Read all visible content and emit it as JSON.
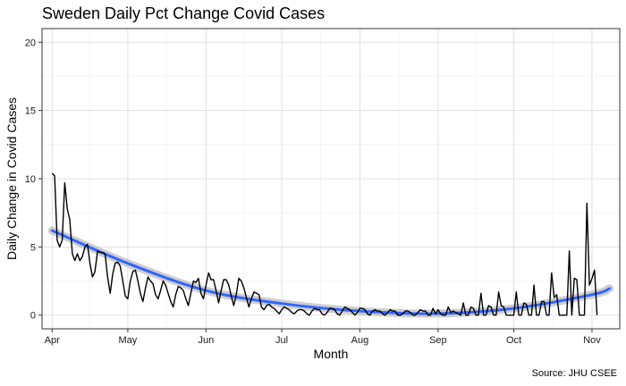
{
  "chart_data": {
    "type": "line",
    "title": "Sweden Daily Pct Change Covid Cases",
    "xlabel": "Month",
    "ylabel": "Daily Change in Covid Cases",
    "caption": "Source: JHU CSEE",
    "grid": true,
    "x_ticks": [
      "Apr",
      "May",
      "Jun",
      "Jul",
      "Aug",
      "Sep",
      "Oct",
      "Nov"
    ],
    "xlim": [
      "2020-03-28",
      "2020-11-12"
    ],
    "ylim": [
      -1,
      21
    ],
    "y_ticks": [
      0,
      5,
      10,
      15,
      20
    ],
    "series": [
      {
        "type": "line",
        "start_date": "2020-04-01",
        "values": [
          10.4,
          10.2,
          5.5,
          5.0,
          5.5,
          9.7,
          7.8,
          7.0,
          4.5,
          4.0,
          4.5,
          4.0,
          4.3,
          5.0,
          5.2,
          3.8,
          2.8,
          3.2,
          4.7,
          4.6,
          4.6,
          4.5,
          2.8,
          1.6,
          3.0,
          3.8,
          3.9,
          3.6,
          2.5,
          1.4,
          1.2,
          2.5,
          3.2,
          3.3,
          2.5,
          1.6,
          1.0,
          2.0,
          2.8,
          2.5,
          2.3,
          1.5,
          1.2,
          1.8,
          2.5,
          2.2,
          1.6,
          1.0,
          0.6,
          1.5,
          2.1,
          2.0,
          1.8,
          1.2,
          0.7,
          1.6,
          2.5,
          2.4,
          2.7,
          1.6,
          1.2,
          2.2,
          3.1,
          2.6,
          2.6,
          1.8,
          0.9,
          1.8,
          2.6,
          2.6,
          2.2,
          1.4,
          0.7,
          1.5,
          2.7,
          2.5,
          2.0,
          1.3,
          0.6,
          1.2,
          1.7,
          1.6,
          1.5,
          0.6,
          0.4,
          0.7,
          0.8,
          0.6,
          0.5,
          0.3,
          0.1,
          0.4,
          0.6,
          0.5,
          0.4,
          0.2,
          0.1,
          0.3,
          0.4,
          0.4,
          0.3,
          0.1,
          0.0,
          0.3,
          0.5,
          0.4,
          0.4,
          0.1,
          0.0,
          0.2,
          0.5,
          0.5,
          0.4,
          0.1,
          0.0,
          0.3,
          0.6,
          0.5,
          0.4,
          0.2,
          0.0,
          0.2,
          0.5,
          0.5,
          0.4,
          0.1,
          0.0,
          0.3,
          0.4,
          0.3,
          0.3,
          0.1,
          0.0,
          0.2,
          0.4,
          0.3,
          0.3,
          0.0,
          0.0,
          0.1,
          0.3,
          0.3,
          0.2,
          0.0,
          0.0,
          0.2,
          0.4,
          0.3,
          0.3,
          0.0,
          0.0,
          0.5,
          0.1,
          0.4,
          0.1,
          0.0,
          0.0,
          0.6,
          0.2,
          0.3,
          0.2,
          0.1,
          0.0,
          0.9,
          0.0,
          0.0,
          0.6,
          0.5,
          0.0,
          0.0,
          1.6,
          0.0,
          0.0,
          0.7,
          0.6,
          0.0,
          0.0,
          1.7,
          0.7,
          0.6,
          0.0,
          0.0,
          0.0,
          0.0,
          1.7,
          0.0,
          0.0,
          0.9,
          0.8,
          0.0,
          0.0,
          2.2,
          0.0,
          0.0,
          1.0,
          1.0,
          0.0,
          0.0,
          3.1,
          1.3,
          1.5,
          0.0,
          0.0,
          0.0,
          0.0,
          4.7,
          0.0,
          2.7,
          2.6,
          0.0,
          0.0,
          0.0,
          8.2,
          2.2,
          2.7,
          3.3,
          0.0
        ]
      },
      {
        "type": "smooth",
        "name": "",
        "color": "#3366ff",
        "band_color": "#bdbdbd",
        "points": [
          [
            "2020-04-01",
            6.2
          ],
          [
            "2020-05-01",
            3.8
          ],
          [
            "2020-06-01",
            1.8
          ],
          [
            "2020-07-01",
            0.85
          ],
          [
            "2020-08-01",
            0.3
          ],
          [
            "2020-09-01",
            0.12
          ],
          [
            "2020-10-01",
            0.5
          ],
          [
            "2020-11-01",
            1.5
          ],
          [
            "2020-11-08",
            1.95
          ]
        ]
      }
    ]
  }
}
